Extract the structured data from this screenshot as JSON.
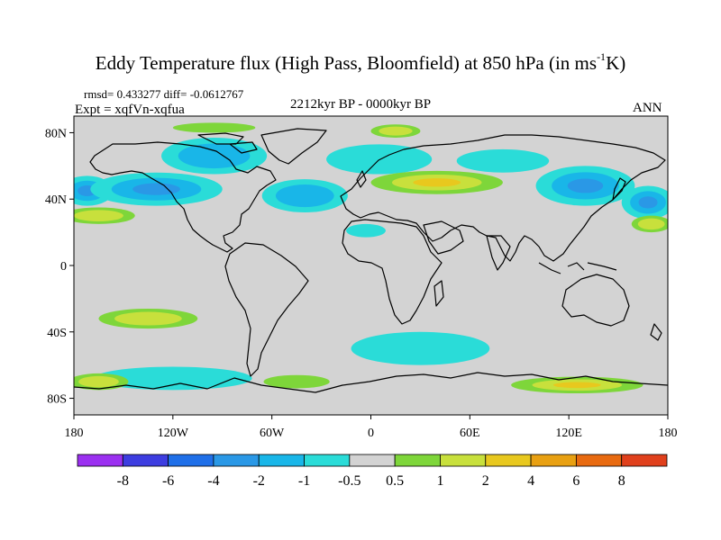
{
  "header": {
    "title_main": "Eddy Temperature flux (High Pass, Bloomfield) at 850 hPa (in ms",
    "title_sup": "-1",
    "title_end": "K)",
    "stats": "rmsd= 0.433277 diff= -0.0612767",
    "experiment": "Expt = xqfVn-xqfua",
    "period": "2212kyr BP - 0000kyr BP",
    "season": "ANN"
  },
  "axes": {
    "lat_labels": [
      "80N",
      "40N",
      "0",
      "40S",
      "80S"
    ],
    "lat_values": [
      80,
      40,
      0,
      -40,
      -80
    ],
    "lon_labels": [
      "180",
      "120W",
      "60W",
      "0",
      "60E",
      "120E",
      "180"
    ],
    "lon_values": [
      -180,
      -120,
      -60,
      0,
      60,
      120,
      180
    ]
  },
  "colorbar": {
    "labels": [
      "-8",
      "-6",
      "-4",
      "-2",
      "-1",
      "-0.5",
      "0.5",
      "1",
      "2",
      "4",
      "6",
      "8"
    ],
    "colors": [
      "#9b30f0",
      "#3d3de0",
      "#1f6fe8",
      "#2a98e6",
      "#19b6e8",
      "#2adcd8",
      "#d3d3d3",
      "#7ed63a",
      "#c8e03c",
      "#e8c81e",
      "#e8a012",
      "#e86a10",
      "#e0401c"
    ]
  },
  "map_colors": {
    "neutral": "#d3d3d3",
    "neg_weak": "#2adcd8",
    "neg_mid": "#19b6e8",
    "neg_strong": "#2a98e6",
    "pos_weak": "#7ed63a",
    "pos_mid": "#c8e03c",
    "pos_strong": "#e8c81e"
  },
  "anomalies": [
    {
      "lon": -172,
      "lat": 45,
      "rlon": 16,
      "rlat": 9,
      "sign": -1,
      "level": 3
    },
    {
      "lon": -130,
      "lat": 46,
      "rlon": 40,
      "rlat": 10,
      "sign": -1,
      "level": 3
    },
    {
      "lon": -95,
      "lat": 66,
      "rlon": 32,
      "rlat": 11,
      "sign": -1,
      "level": 2
    },
    {
      "lon": -40,
      "lat": 42,
      "rlon": 26,
      "rlat": 10,
      "sign": -1,
      "level": 2
    },
    {
      "lon": 5,
      "lat": 64,
      "rlon": 32,
      "rlat": 9,
      "sign": -1,
      "level": 1
    },
    {
      "lon": 130,
      "lat": 48,
      "rlon": 30,
      "rlat": 12,
      "sign": -1,
      "level": 3
    },
    {
      "lon": 168,
      "lat": 38,
      "rlon": 16,
      "rlat": 10,
      "sign": -1,
      "level": 3
    },
    {
      "lon": 80,
      "lat": 63,
      "rlon": 28,
      "rlat": 7,
      "sign": -1,
      "level": 1
    },
    {
      "lon": 30,
      "lat": -50,
      "rlon": 42,
      "rlat": 10,
      "sign": -1,
      "level": 1
    },
    {
      "lon": -120,
      "lat": -68,
      "rlon": 48,
      "rlat": 7,
      "sign": -1,
      "level": 1
    },
    {
      "lon": -3,
      "lat": 21,
      "rlon": 12,
      "rlat": 4,
      "sign": -1,
      "level": 1
    },
    {
      "lon": 40,
      "lat": 50,
      "rlon": 40,
      "rlat": 7,
      "sign": 1,
      "level": 3
    },
    {
      "lon": -165,
      "lat": 30,
      "rlon": 22,
      "rlat": 5,
      "sign": 1,
      "level": 2
    },
    {
      "lon": 170,
      "lat": 25,
      "rlon": 12,
      "rlat": 5,
      "sign": 1,
      "level": 2
    },
    {
      "lon": -135,
      "lat": -32,
      "rlon": 30,
      "rlat": 6,
      "sign": 1,
      "level": 2
    },
    {
      "lon": 125,
      "lat": -72,
      "rlon": 40,
      "rlat": 5,
      "sign": 1,
      "level": 3
    },
    {
      "lon": -165,
      "lat": -70,
      "rlon": 18,
      "rlat": 5,
      "sign": 1,
      "level": 2
    },
    {
      "lon": -45,
      "lat": -70,
      "rlon": 20,
      "rlat": 4,
      "sign": 1,
      "level": 1
    },
    {
      "lon": 15,
      "lat": 81,
      "rlon": 15,
      "rlat": 4,
      "sign": 1,
      "level": 2
    },
    {
      "lon": -95,
      "lat": 83,
      "rlon": 25,
      "rlat": 3,
      "sign": 1,
      "level": 1
    }
  ]
}
